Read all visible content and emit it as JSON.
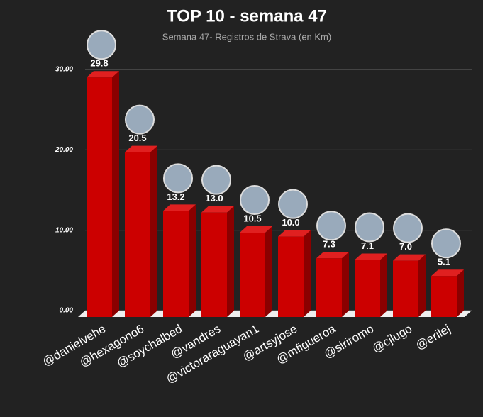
{
  "chart_data": {
    "type": "bar3d",
    "title": "TOP 10 - semana 47",
    "subtitle": "Semana 47- Registros de Strava (en Km)",
    "categories": [
      "@danielvehe",
      "@hexagono6",
      "@soychalbed",
      "@vandres",
      "@victoraraguayan1",
      "@artsyjose",
      "@mfigueroa",
      "@siriromo",
      "@cjlugo",
      "@erilej"
    ],
    "values": [
      29.8,
      20.5,
      13.2,
      13.0,
      10.5,
      10.0,
      7.3,
      7.1,
      7.0,
      5.1
    ],
    "value_labels": [
      "29.8",
      "20.5",
      "13.2",
      "13.0",
      "10.5",
      "10.0",
      "7.3",
      "7.1",
      "7.0",
      "5.1"
    ],
    "color": "#cc0000",
    "ylim": [
      0,
      30
    ],
    "yticks": [
      {
        "value": 0,
        "label": "0.00"
      },
      {
        "value": 10,
        "label": "10.00"
      },
      {
        "value": 20,
        "label": "20.00"
      },
      {
        "value": 30,
        "label": "30.00"
      }
    ],
    "grid": true
  }
}
